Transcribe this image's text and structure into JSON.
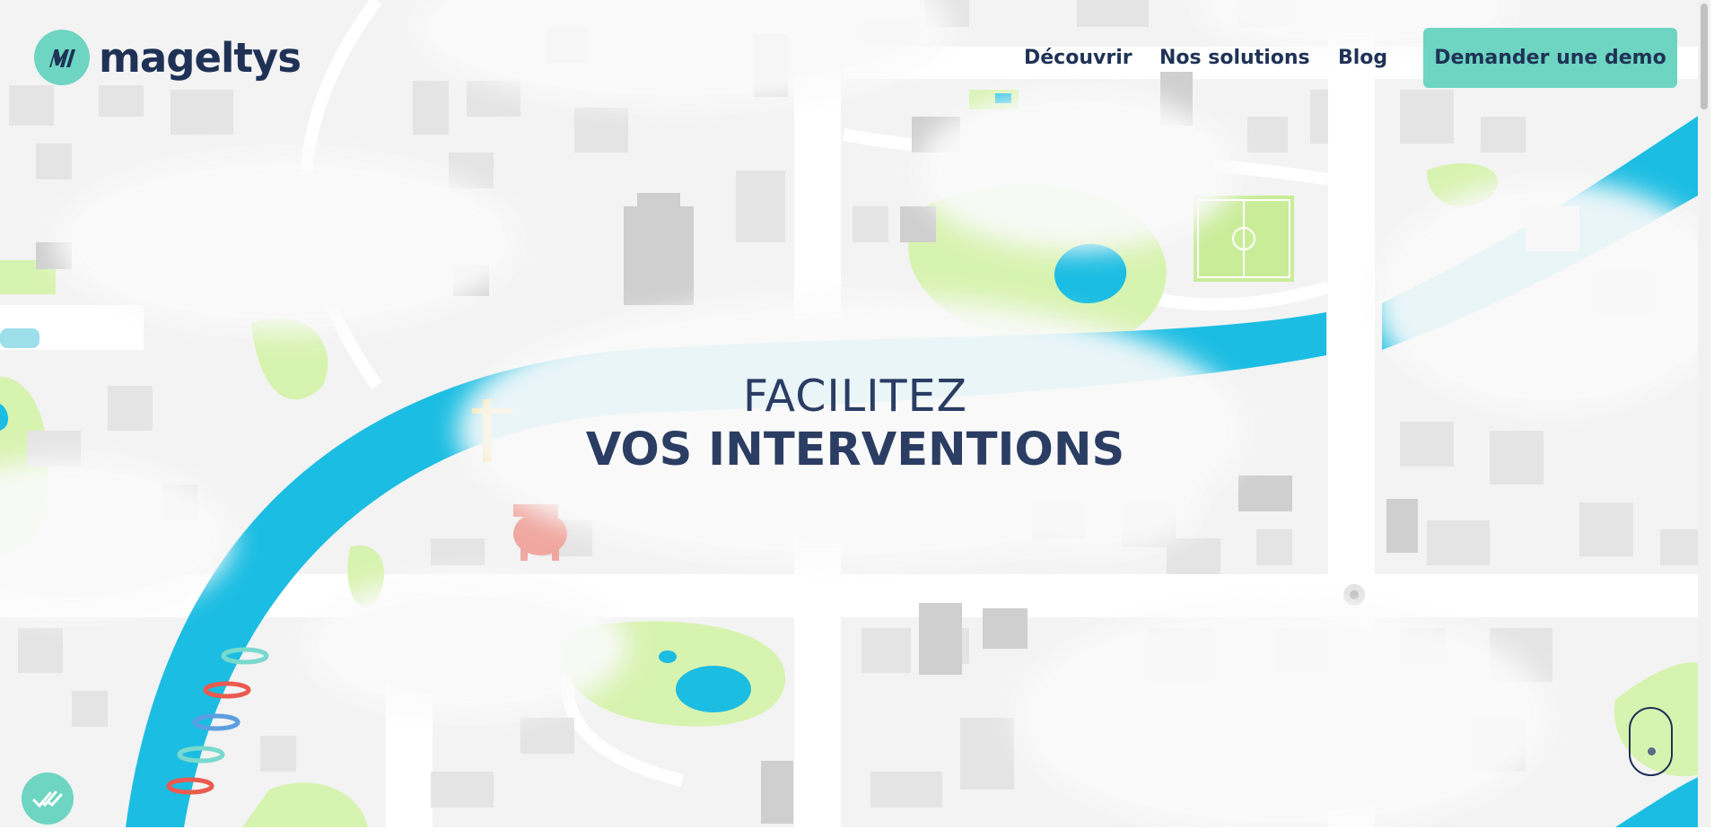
{
  "brand": {
    "name": "mageltys",
    "accent": "#6dd5c1",
    "text_color": "#1f3256"
  },
  "nav": {
    "items": [
      {
        "label": "Découvrir"
      },
      {
        "label": "Nos solutions"
      },
      {
        "label": "Blog"
      }
    ]
  },
  "cta": {
    "label": "Demander une demo"
  },
  "hero": {
    "line1": "FACILITEZ",
    "line2": "VOS INTERVENTIONS"
  },
  "icons": {
    "logo": "mageltys-m-logo-icon",
    "chat": "check-marks-icon",
    "scroll": "mouse-scroll-icon"
  },
  "map_colors": {
    "background": "#f3f3f3",
    "river": "#1cbde2",
    "park": "#d7f3b0",
    "road": "#ffffff",
    "building": "#e6e6e6",
    "cloud": "#fafafa"
  }
}
